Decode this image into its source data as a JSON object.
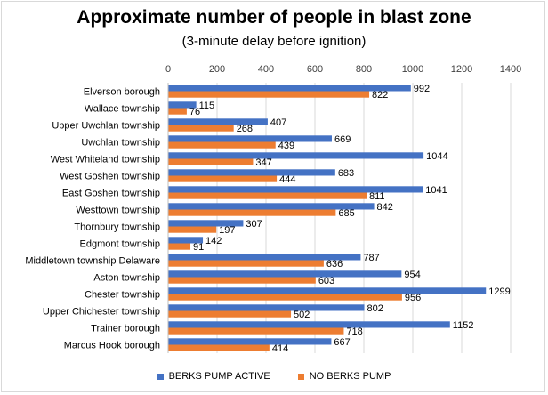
{
  "chart_data": {
    "type": "bar",
    "orientation": "horizontal",
    "title": "Approximate number of people in blast zone",
    "subtitle": "(3-minute delay before ignition)",
    "xlim": [
      0,
      1400
    ],
    "ticks": [
      "0",
      "200",
      "400",
      "600",
      "800",
      "1000",
      "1200",
      "1400"
    ],
    "tick_values": [
      0,
      200,
      400,
      600,
      800,
      1000,
      1200,
      1400
    ],
    "grid": true,
    "legend_position": "bottom",
    "categories": [
      "Elverson borough",
      "Wallace township",
      "Upper Uwchlan township",
      "Uwchlan township",
      "West Whiteland township",
      "West Goshen township",
      "East Goshen township",
      "Westtown township",
      "Thornbury township",
      "Edgmont township",
      "Middletown township Delaware",
      "Aston township",
      "Chester township",
      "Upper Chichester township",
      "Trainer borough",
      "Marcus Hook borough"
    ],
    "series": [
      {
        "name": "BERKS PUMP ACTIVE",
        "color": "#4472c4",
        "values": [
          992,
          115,
          407,
          669,
          1044,
          683,
          1041,
          842,
          307,
          142,
          787,
          954,
          1299,
          802,
          1152,
          667
        ]
      },
      {
        "name": "NO BERKS PUMP",
        "color": "#ed7d31",
        "values": [
          822,
          76,
          268,
          439,
          347,
          444,
          811,
          685,
          197,
          91,
          636,
          603,
          956,
          502,
          718,
          414
        ]
      }
    ]
  }
}
